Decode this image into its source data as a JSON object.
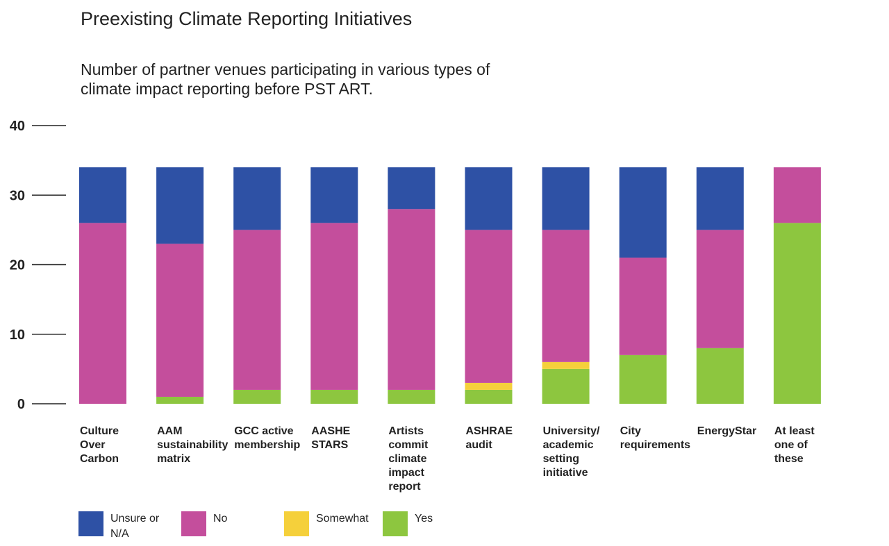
{
  "chart_data": {
    "type": "bar",
    "stacked": true,
    "title": "Preexisting Climate Reporting Initiatives",
    "subtitle": "Number of partner venues participating in various types of climate impact reporting before PST ART.",
    "xlabel": "",
    "ylabel": "",
    "ylim": [
      0,
      40
    ],
    "yticks": [
      0,
      10,
      20,
      30,
      40
    ],
    "grid": false,
    "legend_position": "bottom-left",
    "categories": [
      "Culture Over Carbon",
      "AAM sustainability matrix",
      "GCC active membership",
      "AASHE STARS",
      "Artists commit climate impact report",
      "ASHRAE audit",
      "University/ academic setting initiative",
      "City requirements",
      "EnergyStar",
      "At least one of these"
    ],
    "series": [
      {
        "name": "Yes",
        "color": "#8dc63f",
        "values": [
          0,
          1,
          2,
          2,
          2,
          2,
          5,
          7,
          8,
          26
        ]
      },
      {
        "name": "Somewhat",
        "color": "#f5d03b",
        "values": [
          0,
          0,
          0,
          0,
          0,
          1,
          1,
          0,
          0,
          0
        ]
      },
      {
        "name": "No",
        "color": "#c44e9c",
        "values": [
          26,
          22,
          23,
          24,
          26,
          22,
          19,
          14,
          17,
          8
        ]
      },
      {
        "name": "Unsure or N/A",
        "color": "#2e51a5",
        "values": [
          8,
          11,
          9,
          8,
          6,
          9,
          9,
          13,
          9,
          0
        ]
      }
    ],
    "legend_order": [
      "Unsure or N/A",
      "No",
      "Somewhat",
      "Yes"
    ]
  }
}
